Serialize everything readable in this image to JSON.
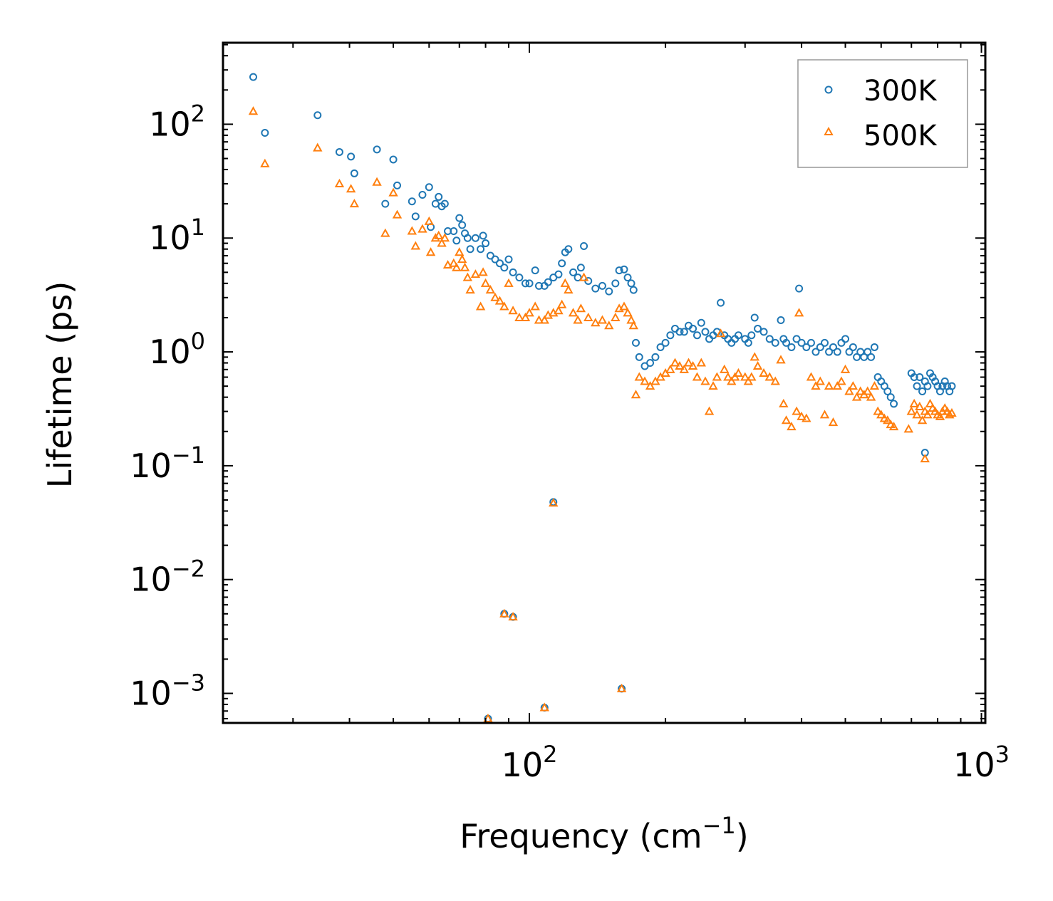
{
  "chart_data": {
    "type": "scatter",
    "xscale": "log",
    "yscale": "log",
    "xlabel": "Frequency (cm",
    "xlabel_sup": "−1",
    "xlabel_end": ")",
    "ylabel": "Lifetime (ps)",
    "xlim": [
      21,
      1020
    ],
    "ylim": [
      0.00055,
      520
    ],
    "x_ticks": [
      {
        "value": 100,
        "base": "10",
        "exp": "2"
      },
      {
        "value": 1000,
        "base": "10",
        "exp": "3"
      }
    ],
    "y_ticks": [
      {
        "value": 0.001,
        "base": "10",
        "exp": "−3"
      },
      {
        "value": 0.01,
        "base": "10",
        "exp": "−2"
      },
      {
        "value": 0.1,
        "base": "10",
        "exp": "−1"
      },
      {
        "value": 1,
        "base": "10",
        "exp": "0"
      },
      {
        "value": 10,
        "base": "10",
        "exp": "1"
      },
      {
        "value": 100,
        "base": "10",
        "exp": "2"
      }
    ],
    "legend_position": "top-right",
    "series": [
      {
        "name": "300K",
        "color": "#1f77b4",
        "marker": "circle",
        "points": [
          [
            24.5,
            260
          ],
          [
            26,
            84
          ],
          [
            34,
            120
          ],
          [
            38,
            57
          ],
          [
            40.3,
            52
          ],
          [
            41,
            37
          ],
          [
            46,
            60
          ],
          [
            48,
            20
          ],
          [
            50,
            49
          ],
          [
            51,
            29
          ],
          [
            55,
            21
          ],
          [
            56,
            15.5
          ],
          [
            58,
            24
          ],
          [
            60,
            28
          ],
          [
            60.5,
            12.5
          ],
          [
            62,
            20
          ],
          [
            63,
            23
          ],
          [
            64,
            19
          ],
          [
            65,
            20
          ],
          [
            66,
            11.5
          ],
          [
            68,
            11.5
          ],
          [
            69,
            9.5
          ],
          [
            70,
            15
          ],
          [
            71,
            13
          ],
          [
            72,
            11
          ],
          [
            73,
            10
          ],
          [
            74,
            8
          ],
          [
            76,
            10
          ],
          [
            78,
            8
          ],
          [
            79,
            10.5
          ],
          [
            80,
            9
          ],
          [
            82,
            7
          ],
          [
            84,
            6.5
          ],
          [
            86,
            6
          ],
          [
            88,
            5.5
          ],
          [
            90,
            6.5
          ],
          [
            92,
            5
          ],
          [
            95,
            4.5
          ],
          [
            98,
            4
          ],
          [
            100,
            4
          ],
          [
            103,
            5.2
          ],
          [
            105,
            3.8
          ],
          [
            108,
            3.8
          ],
          [
            110,
            4.1
          ],
          [
            113,
            4.5
          ],
          [
            116,
            4.8
          ],
          [
            118,
            6
          ],
          [
            120,
            7.5
          ],
          [
            122,
            8
          ],
          [
            125,
            5
          ],
          [
            128,
            4.5
          ],
          [
            130,
            5.5
          ],
          [
            132,
            8.5
          ],
          [
            135,
            4.2
          ],
          [
            140,
            3.6
          ],
          [
            145,
            3.8
          ],
          [
            150,
            3.4
          ],
          [
            155,
            4
          ],
          [
            158,
            5.2
          ],
          [
            162,
            5.3
          ],
          [
            165,
            4.5
          ],
          [
            168,
            4
          ],
          [
            170,
            3.5
          ],
          [
            172,
            1.2
          ],
          [
            175,
            0.9
          ],
          [
            180,
            0.75
          ],
          [
            185,
            0.8
          ],
          [
            190,
            0.9
          ],
          [
            195,
            1.1
          ],
          [
            200,
            1.2
          ],
          [
            205,
            1.4
          ],
          [
            210,
            1.6
          ],
          [
            215,
            1.5
          ],
          [
            220,
            1.5
          ],
          [
            225,
            1.7
          ],
          [
            230,
            1.6
          ],
          [
            235,
            1.4
          ],
          [
            240,
            1.8
          ],
          [
            245,
            1.5
          ],
          [
            250,
            1.3
          ],
          [
            255,
            1.4
          ],
          [
            260,
            1.5
          ],
          [
            265,
            2.7
          ],
          [
            270,
            1.4
          ],
          [
            275,
            1.3
          ],
          [
            280,
            1.2
          ],
          [
            285,
            1.3
          ],
          [
            290,
            1.4
          ],
          [
            300,
            1.3
          ],
          [
            305,
            1.2
          ],
          [
            310,
            1.4
          ],
          [
            315,
            2
          ],
          [
            320,
            1.6
          ],
          [
            330,
            1.5
          ],
          [
            340,
            1.3
          ],
          [
            350,
            1.2
          ],
          [
            360,
            1.9
          ],
          [
            365,
            1.3
          ],
          [
            370,
            1.2
          ],
          [
            380,
            1.1
          ],
          [
            390,
            1.3
          ],
          [
            395,
            3.6
          ],
          [
            400,
            1.2
          ],
          [
            410,
            1.1
          ],
          [
            420,
            1.2
          ],
          [
            430,
            1.0
          ],
          [
            440,
            1.1
          ],
          [
            450,
            1.2
          ],
          [
            460,
            1.0
          ],
          [
            470,
            1.1
          ],
          [
            480,
            1.0
          ],
          [
            490,
            1.2
          ],
          [
            500,
            1.3
          ],
          [
            510,
            1.0
          ],
          [
            520,
            1.1
          ],
          [
            530,
            0.9
          ],
          [
            540,
            1.0
          ],
          [
            550,
            0.9
          ],
          [
            560,
            1.0
          ],
          [
            570,
            0.9
          ],
          [
            580,
            1.1
          ],
          [
            590,
            0.6
          ],
          [
            600,
            0.55
          ],
          [
            610,
            0.5
          ],
          [
            620,
            0.45
          ],
          [
            630,
            0.4
          ],
          [
            640,
            0.35
          ],
          [
            700,
            0.65
          ],
          [
            710,
            0.6
          ],
          [
            720,
            0.5
          ],
          [
            730,
            0.6
          ],
          [
            740,
            0.45
          ],
          [
            750,
            0.55
          ],
          [
            760,
            0.5
          ],
          [
            770,
            0.65
          ],
          [
            780,
            0.6
          ],
          [
            790,
            0.55
          ],
          [
            800,
            0.5
          ],
          [
            810,
            0.45
          ],
          [
            820,
            0.5
          ],
          [
            830,
            0.55
          ],
          [
            840,
            0.5
          ],
          [
            850,
            0.45
          ],
          [
            860,
            0.5
          ],
          [
            750,
            0.13
          ],
          [
            113,
            0.048
          ],
          [
            88,
            0.005
          ],
          [
            92,
            0.0047
          ],
          [
            81,
            0.0006
          ],
          [
            108,
            0.00075
          ],
          [
            160,
            0.0011
          ]
        ]
      },
      {
        "name": "500K",
        "color": "#ff7f0e",
        "marker": "triangle",
        "points": [
          [
            24.5,
            130
          ],
          [
            26,
            45
          ],
          [
            34,
            62
          ],
          [
            38,
            30
          ],
          [
            40.3,
            27
          ],
          [
            41,
            20
          ],
          [
            46,
            31
          ],
          [
            48,
            11
          ],
          [
            50,
            25
          ],
          [
            51,
            16
          ],
          [
            55,
            11.5
          ],
          [
            56,
            8.5
          ],
          [
            58,
            12
          ],
          [
            60,
            14
          ],
          [
            60.5,
            7.5
          ],
          [
            62,
            10
          ],
          [
            63,
            10.5
          ],
          [
            64,
            9
          ],
          [
            65,
            10
          ],
          [
            66,
            5.8
          ],
          [
            68,
            6
          ],
          [
            69,
            5.5
          ],
          [
            70,
            7.5
          ],
          [
            71,
            6.5
          ],
          [
            72,
            5.5
          ],
          [
            73,
            4.5
          ],
          [
            74,
            3.5
          ],
          [
            76,
            4.8
          ],
          [
            78,
            2.5
          ],
          [
            79,
            5
          ],
          [
            80,
            4
          ],
          [
            82,
            3.5
          ],
          [
            84,
            3
          ],
          [
            86,
            2.8
          ],
          [
            88,
            2.5
          ],
          [
            90,
            4
          ],
          [
            92,
            2.3
          ],
          [
            95,
            2
          ],
          [
            98,
            2
          ],
          [
            100,
            2.2
          ],
          [
            103,
            2.5
          ],
          [
            105,
            1.9
          ],
          [
            108,
            1.9
          ],
          [
            110,
            2.1
          ],
          [
            113,
            2.2
          ],
          [
            116,
            2.3
          ],
          [
            118,
            2.6
          ],
          [
            120,
            4
          ],
          [
            122,
            3.5
          ],
          [
            125,
            2.2
          ],
          [
            128,
            1.9
          ],
          [
            130,
            2.4
          ],
          [
            132,
            4.5
          ],
          [
            135,
            2.0
          ],
          [
            140,
            1.8
          ],
          [
            145,
            1.9
          ],
          [
            150,
            1.7
          ],
          [
            155,
            2.0
          ],
          [
            158,
            2.4
          ],
          [
            162,
            2.5
          ],
          [
            165,
            2.2
          ],
          [
            168,
            1.9
          ],
          [
            170,
            1.7
          ],
          [
            172,
            0.42
          ],
          [
            175,
            0.6
          ],
          [
            180,
            0.55
          ],
          [
            185,
            0.5
          ],
          [
            190,
            0.55
          ],
          [
            195,
            0.6
          ],
          [
            200,
            0.65
          ],
          [
            205,
            0.7
          ],
          [
            210,
            0.8
          ],
          [
            215,
            0.75
          ],
          [
            220,
            0.7
          ],
          [
            225,
            0.8
          ],
          [
            230,
            0.75
          ],
          [
            235,
            0.6
          ],
          [
            240,
            0.8
          ],
          [
            245,
            0.55
          ],
          [
            250,
            0.3
          ],
          [
            255,
            0.5
          ],
          [
            260,
            0.6
          ],
          [
            265,
            1.45
          ],
          [
            270,
            0.7
          ],
          [
            275,
            0.6
          ],
          [
            280,
            0.55
          ],
          [
            285,
            0.6
          ],
          [
            290,
            0.65
          ],
          [
            300,
            0.6
          ],
          [
            305,
            0.55
          ],
          [
            310,
            0.6
          ],
          [
            315,
            0.9
          ],
          [
            320,
            0.75
          ],
          [
            330,
            0.65
          ],
          [
            340,
            0.6
          ],
          [
            350,
            0.55
          ],
          [
            360,
            0.85
          ],
          [
            365,
            0.35
          ],
          [
            370,
            0.25
          ],
          [
            380,
            0.22
          ],
          [
            390,
            0.3
          ],
          [
            395,
            2.2
          ],
          [
            400,
            0.27
          ],
          [
            410,
            0.26
          ],
          [
            420,
            0.6
          ],
          [
            430,
            0.5
          ],
          [
            440,
            0.55
          ],
          [
            450,
            0.28
          ],
          [
            460,
            0.5
          ],
          [
            470,
            0.24
          ],
          [
            480,
            0.5
          ],
          [
            490,
            0.55
          ],
          [
            500,
            0.7
          ],
          [
            510,
            0.45
          ],
          [
            520,
            0.5
          ],
          [
            530,
            0.4
          ],
          [
            540,
            0.45
          ],
          [
            550,
            0.42
          ],
          [
            560,
            0.45
          ],
          [
            570,
            0.4
          ],
          [
            580,
            0.5
          ],
          [
            590,
            0.3
          ],
          [
            600,
            0.28
          ],
          [
            610,
            0.26
          ],
          [
            620,
            0.25
          ],
          [
            630,
            0.23
          ],
          [
            640,
            0.22
          ],
          [
            690,
            0.21
          ],
          [
            700,
            0.3
          ],
          [
            710,
            0.35
          ],
          [
            720,
            0.28
          ],
          [
            730,
            0.33
          ],
          [
            740,
            0.25
          ],
          [
            750,
            0.3
          ],
          [
            760,
            0.28
          ],
          [
            770,
            0.35
          ],
          [
            780,
            0.32
          ],
          [
            790,
            0.3
          ],
          [
            800,
            0.28
          ],
          [
            810,
            0.27
          ],
          [
            820,
            0.3
          ],
          [
            830,
            0.32
          ],
          [
            840,
            0.3
          ],
          [
            850,
            0.28
          ],
          [
            860,
            0.29
          ],
          [
            750,
            0.115
          ],
          [
            113,
            0.047
          ],
          [
            88,
            0.005
          ],
          [
            92,
            0.0047
          ],
          [
            81,
            0.0006
          ],
          [
            108,
            0.00075
          ],
          [
            160,
            0.0011
          ]
        ]
      }
    ]
  }
}
